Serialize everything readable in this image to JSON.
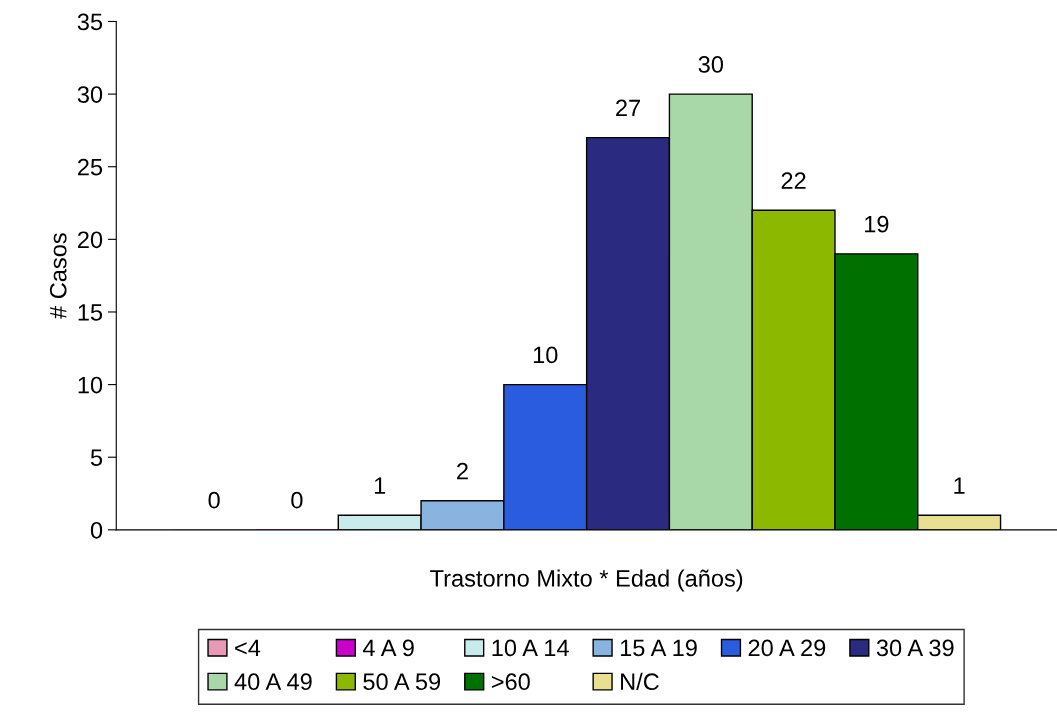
{
  "chart_data": {
    "type": "bar",
    "xlabel": "Trastorno Mixto * Edad (años)",
    "ylabel": "# Casos",
    "categories": [
      null
    ],
    "series": [
      {
        "name": "<4",
        "color": "#e899b5",
        "values": [
          0
        ]
      },
      {
        "name": "4 A 9",
        "color": "#cc00cc",
        "values": [
          0
        ]
      },
      {
        "name": "10 A 14",
        "color": "#c8ecec",
        "values": [
          1
        ]
      },
      {
        "name": "15 A 19",
        "color": "#8ab4e0",
        "values": [
          2
        ]
      },
      {
        "name": "20 A 29",
        "color": "#2a5ce0",
        "values": [
          10
        ]
      },
      {
        "name": "30 A 39",
        "color": "#2a2a80",
        "values": [
          27
        ]
      },
      {
        "name": "40 A 49",
        "color": "#a8d8a8",
        "values": [
          30
        ]
      },
      {
        "name": "50 A 59",
        "color": "#8cb800",
        "values": [
          22
        ]
      },
      {
        "name": ">60",
        "color": "#007000",
        "values": [
          19
        ]
      },
      {
        "name": "N/C",
        "color": "#e8e090",
        "values": [
          1
        ]
      }
    ],
    "ylim": [
      0,
      35
    ],
    "yticks": [
      0,
      5,
      10,
      15,
      20,
      25,
      30,
      35
    ],
    "grid": false,
    "legend": "bottom",
    "data_labels": true
  }
}
